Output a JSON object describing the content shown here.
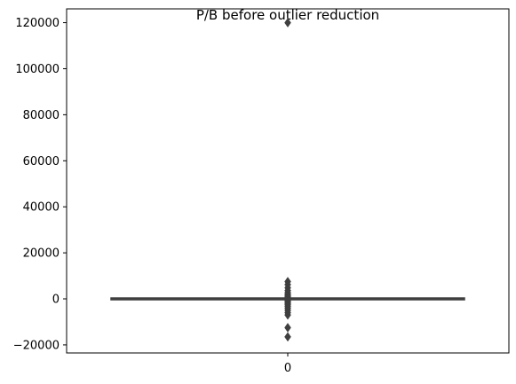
{
  "chart_data": {
    "type": "box",
    "title": "P/B before outlier reduction",
    "xlabel": "",
    "ylabel": "",
    "categories": [
      "0"
    ],
    "ylim": [
      -23500,
      126000
    ],
    "yticks": [
      -20000,
      0,
      20000,
      40000,
      60000,
      80000,
      100000,
      120000
    ],
    "ytick_labels": [
      "−20000",
      "0",
      "20000",
      "40000",
      "60000",
      "80000",
      "100000",
      "120000"
    ],
    "box": {
      "q1": 0,
      "median": 0,
      "q3": 0,
      "whisker_low": -1,
      "whisker_high": 1
    },
    "outliers": [
      120000,
      7500,
      6200,
      4800,
      3600,
      2700,
      2000,
      1500,
      1000,
      600,
      300,
      -300,
      -600,
      -1000,
      -1500,
      -2000,
      -2600,
      -3300,
      -4100,
      -5000,
      -6000,
      -7000,
      -12500,
      -16500
    ],
    "grid": false,
    "colors": {
      "box_line": "#3f3f3f",
      "outlier": "#3f3f3f",
      "axes": "#000000"
    }
  }
}
